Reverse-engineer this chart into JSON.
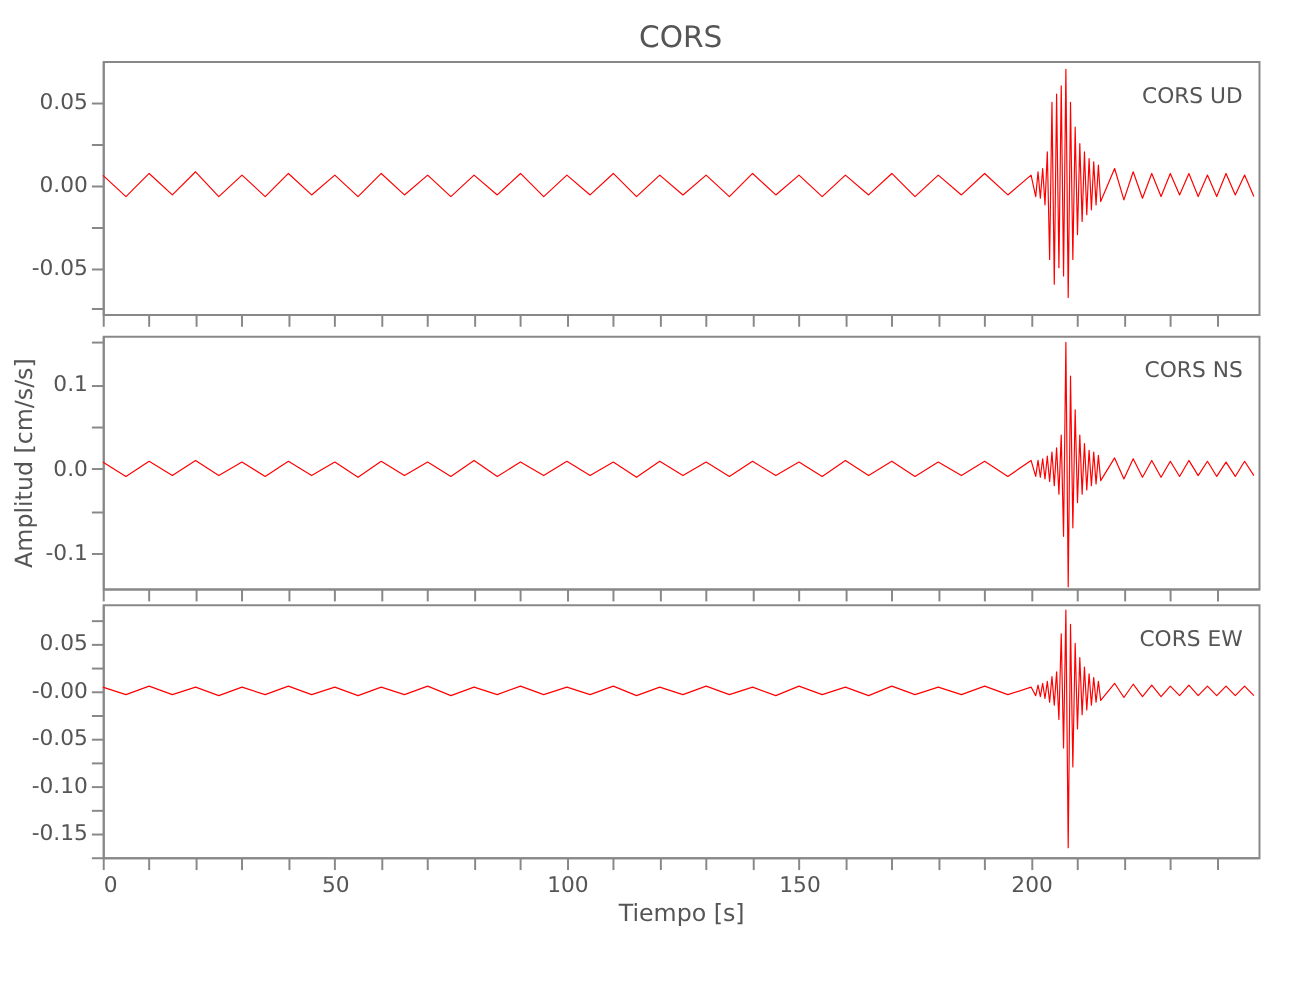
{
  "chart_data": [
    {
      "type": "line",
      "title": "CORS",
      "annotations": [
        "CORS UD"
      ],
      "tick_labels": "y",
      "grid": false,
      "marker": "none",
      "line_style": "solid",
      "x": [
        0,
        5,
        10,
        15,
        20,
        25,
        30,
        35,
        40,
        45,
        50,
        55,
        60,
        65,
        70,
        75,
        80,
        85,
        90,
        95,
        100,
        105,
        110,
        115,
        120,
        125,
        130,
        135,
        140,
        145,
        150,
        155,
        160,
        165,
        170,
        175,
        180,
        185,
        190,
        195,
        200,
        201,
        201.5,
        202,
        202.5,
        203,
        203.5,
        204,
        204.5,
        205,
        205.5,
        206,
        206.5,
        207,
        207.5,
        208,
        208.5,
        209,
        209.5,
        210,
        210.5,
        211,
        211.5,
        212,
        212.5,
        213,
        213.5,
        214,
        214.5,
        215,
        218,
        220,
        222,
        224,
        226,
        228,
        230,
        232,
        234,
        236,
        238,
        240,
        242,
        244,
        246,
        248
      ],
      "series": [
        {
          "color": "#ff0000",
          "values": [
            0.006,
            -0.007,
            0.007,
            -0.006,
            0.008,
            -0.007,
            0.006,
            -0.007,
            0.007,
            -0.006,
            0.006,
            -0.007,
            0.007,
            -0.006,
            0.006,
            -0.007,
            0.006,
            -0.006,
            0.007,
            -0.007,
            0.006,
            -0.006,
            0.007,
            -0.007,
            0.006,
            -0.006,
            0.006,
            -0.007,
            0.007,
            -0.006,
            0.006,
            -0.007,
            0.006,
            -0.006,
            0.007,
            -0.007,
            0.006,
            -0.006,
            0.007,
            -0.006,
            0.006,
            -0.007,
            0.008,
            -0.008,
            0.01,
            -0.012,
            0.02,
            -0.045,
            0.05,
            -0.06,
            0.055,
            -0.05,
            0.06,
            -0.055,
            0.07,
            -0.068,
            0.05,
            -0.045,
            0.035,
            -0.03,
            0.025,
            -0.022,
            0.02,
            -0.018,
            0.016,
            -0.015,
            0.014,
            -0.012,
            0.012,
            -0.01,
            0.01,
            -0.009,
            0.008,
            -0.008,
            0.007,
            -0.007,
            0.007,
            -0.006,
            0.007,
            -0.007,
            0.006,
            -0.007,
            0.007,
            -0.006,
            0.006,
            -0.007
          ]
        }
      ],
      "xlim": [
        0,
        249
      ],
      "xticks": [
        0,
        {
          "value": 10,
          "label": null
        },
        {
          "value": 20,
          "label": null
        },
        {
          "value": 30,
          "label": null
        },
        {
          "value": 40,
          "label": null
        },
        50,
        {
          "value": 60,
          "label": null
        },
        {
          "value": 70,
          "label": null
        },
        {
          "value": 80,
          "label": null
        },
        {
          "value": 90,
          "label": null
        },
        100,
        {
          "value": 110,
          "label": null
        },
        {
          "value": 120,
          "label": null
        },
        {
          "value": 130,
          "label": null
        },
        {
          "value": 140,
          "label": null
        },
        150,
        {
          "value": 160,
          "label": null
        },
        {
          "value": 170,
          "label": null
        },
        {
          "value": 180,
          "label": null
        },
        {
          "value": 190,
          "label": null
        },
        200,
        {
          "value": 210,
          "label": null
        },
        {
          "value": 220,
          "label": null
        },
        {
          "value": 230,
          "label": null
        },
        {
          "value": 240,
          "label": null
        }
      ],
      "ylim": [
        -0.078,
        0.075
      ],
      "yticks": [
        {
          "value": -0.075,
          "label": null
        },
        {
          "value": -0.05,
          "label": "-0.05"
        },
        {
          "value": -0.025,
          "label": null
        },
        {
          "value": 0,
          "label": "0.00"
        },
        {
          "value": 0.025,
          "label": null
        },
        {
          "value": 0.05,
          "label": "0.05"
        }
      ]
    },
    {
      "type": "line",
      "ylabel": "Amplitud [cm/s/s]",
      "annotations": [
        "CORS NS"
      ],
      "tick_labels": "y",
      "grid": false,
      "marker": "none",
      "line_style": "solid",
      "x": [
        0,
        5,
        10,
        15,
        20,
        25,
        30,
        35,
        40,
        45,
        50,
        55,
        60,
        65,
        70,
        75,
        80,
        85,
        90,
        95,
        100,
        105,
        110,
        115,
        120,
        125,
        130,
        135,
        140,
        145,
        150,
        155,
        160,
        165,
        170,
        175,
        180,
        185,
        190,
        195,
        200,
        201,
        201.5,
        202,
        202.5,
        203,
        203.5,
        204,
        204.5,
        205,
        205.5,
        206,
        206.5,
        207,
        207.5,
        208,
        208.5,
        209,
        209.5,
        210,
        210.5,
        211,
        211.5,
        212,
        212.5,
        213,
        213.5,
        214,
        214.5,
        215,
        218,
        220,
        222,
        224,
        226,
        228,
        230,
        232,
        234,
        236,
        238,
        240,
        242,
        244,
        246,
        248
      ],
      "series": [
        {
          "color": "#ff0000",
          "values": [
            0.008,
            -0.009,
            0.009,
            -0.008,
            0.01,
            -0.008,
            0.008,
            -0.009,
            0.009,
            -0.008,
            0.008,
            -0.01,
            0.009,
            -0.008,
            0.008,
            -0.009,
            0.01,
            -0.009,
            0.008,
            -0.008,
            0.009,
            -0.008,
            0.008,
            -0.01,
            0.009,
            -0.008,
            0.008,
            -0.009,
            0.009,
            -0.008,
            0.008,
            -0.009,
            0.01,
            -0.008,
            0.009,
            -0.009,
            0.008,
            -0.008,
            0.009,
            -0.009,
            0.01,
            -0.009,
            0.01,
            -0.01,
            0.012,
            -0.012,
            0.015,
            -0.015,
            0.02,
            -0.02,
            0.025,
            -0.03,
            0.04,
            -0.08,
            0.15,
            -0.14,
            0.11,
            -0.07,
            0.07,
            -0.04,
            0.04,
            -0.03,
            0.03,
            -0.025,
            0.022,
            -0.02,
            0.02,
            -0.018,
            0.016,
            -0.014,
            0.013,
            -0.012,
            0.012,
            -0.01,
            0.01,
            -0.01,
            0.009,
            -0.009,
            0.01,
            -0.008,
            0.009,
            -0.009,
            0.008,
            -0.009,
            0.009,
            -0.008
          ]
        }
      ],
      "xlim": [
        0,
        249
      ],
      "xticks": [
        0,
        {
          "value": 10,
          "label": null
        },
        {
          "value": 20,
          "label": null
        },
        {
          "value": 30,
          "label": null
        },
        {
          "value": 40,
          "label": null
        },
        50,
        {
          "value": 60,
          "label": null
        },
        {
          "value": 70,
          "label": null
        },
        {
          "value": 80,
          "label": null
        },
        {
          "value": 90,
          "label": null
        },
        100,
        {
          "value": 110,
          "label": null
        },
        {
          "value": 120,
          "label": null
        },
        {
          "value": 130,
          "label": null
        },
        {
          "value": 140,
          "label": null
        },
        150,
        {
          "value": 160,
          "label": null
        },
        {
          "value": 170,
          "label": null
        },
        {
          "value": 180,
          "label": null
        },
        {
          "value": 190,
          "label": null
        },
        200,
        {
          "value": 210,
          "label": null
        },
        {
          "value": 220,
          "label": null
        },
        {
          "value": 230,
          "label": null
        },
        {
          "value": 240,
          "label": null
        }
      ],
      "ylim": [
        -0.142,
        0.158
      ],
      "yticks": [
        {
          "value": -0.1,
          "label": "-0.1"
        },
        {
          "value": -0.05,
          "label": null
        },
        {
          "value": 0,
          "label": "0.0"
        },
        {
          "value": 0.05,
          "label": null
        },
        0.1,
        {
          "value": 0.15,
          "label": null
        }
      ]
    },
    {
      "type": "line",
      "xlabel": "Tiempo [s]",
      "annotations": [
        "CORS EW"
      ],
      "grid": false,
      "marker": "none",
      "line_style": "solid",
      "x": [
        0,
        5,
        10,
        15,
        20,
        25,
        30,
        35,
        40,
        45,
        50,
        55,
        60,
        65,
        70,
        75,
        80,
        85,
        90,
        95,
        100,
        105,
        110,
        115,
        120,
        125,
        130,
        135,
        140,
        145,
        150,
        155,
        160,
        165,
        170,
        175,
        180,
        185,
        190,
        195,
        200,
        201,
        201.5,
        202,
        202.5,
        203,
        203.5,
        204,
        204.5,
        205,
        205.5,
        206,
        206.5,
        207,
        207.5,
        208,
        208.5,
        209,
        209.5,
        210,
        210.5,
        211,
        211.5,
        212,
        212.5,
        213,
        213.5,
        214,
        214.5,
        215,
        218,
        220,
        222,
        224,
        226,
        228,
        230,
        232,
        234,
        236,
        238,
        240,
        242,
        244,
        246,
        248
      ],
      "series": [
        {
          "color": "#ff0000",
          "values": [
            0.004,
            -0.004,
            0.005,
            -0.004,
            0.004,
            -0.005,
            0.004,
            -0.004,
            0.005,
            -0.004,
            0.004,
            -0.005,
            0.004,
            -0.004,
            0.005,
            -0.005,
            0.004,
            -0.004,
            0.005,
            -0.004,
            0.004,
            -0.004,
            0.005,
            -0.005,
            0.004,
            -0.004,
            0.005,
            -0.004,
            0.004,
            -0.005,
            0.005,
            -0.004,
            0.004,
            -0.005,
            0.005,
            -0.004,
            0.004,
            -0.004,
            0.005,
            -0.004,
            0.004,
            -0.005,
            0.006,
            -0.006,
            0.008,
            -0.008,
            0.01,
            -0.012,
            0.015,
            -0.015,
            0.02,
            -0.03,
            0.06,
            -0.06,
            0.085,
            -0.165,
            0.07,
            -0.08,
            0.05,
            -0.04,
            0.035,
            -0.025,
            0.025,
            -0.02,
            0.018,
            -0.015,
            0.014,
            -0.012,
            0.01,
            -0.01,
            0.008,
            -0.007,
            0.007,
            -0.006,
            0.006,
            -0.006,
            0.005,
            -0.005,
            0.006,
            -0.005,
            0.005,
            -0.005,
            0.005,
            -0.005,
            0.005,
            -0.005
          ]
        }
      ],
      "xlim": [
        0,
        249
      ],
      "xticks": [
        0,
        {
          "value": 10,
          "label": null
        },
        {
          "value": 20,
          "label": null
        },
        {
          "value": 30,
          "label": null
        },
        {
          "value": 40,
          "label": null
        },
        50,
        {
          "value": 60,
          "label": null
        },
        {
          "value": 70,
          "label": null
        },
        {
          "value": 80,
          "label": null
        },
        {
          "value": 90,
          "label": null
        },
        100,
        {
          "value": 110,
          "label": null
        },
        {
          "value": 120,
          "label": null
        },
        {
          "value": 130,
          "label": null
        },
        {
          "value": 140,
          "label": null
        },
        150,
        {
          "value": 160,
          "label": null
        },
        {
          "value": 170,
          "label": null
        },
        {
          "value": 180,
          "label": null
        },
        {
          "value": 190,
          "label": null
        },
        200,
        {
          "value": 210,
          "label": null
        },
        {
          "value": 220,
          "label": null
        },
        {
          "value": 230,
          "label": null
        },
        {
          "value": 240,
          "label": null
        }
      ],
      "ylim": [
        -0.175,
        0.091
      ],
      "yticks": [
        {
          "value": -0.175,
          "label": null
        },
        {
          "value": -0.15,
          "label": "-0.15"
        },
        {
          "value": -0.125,
          "label": null
        },
        {
          "value": -0.1,
          "label": "-0.10"
        },
        {
          "value": -0.075,
          "label": null
        },
        {
          "value": -0.05,
          "label": "-0.05"
        },
        {
          "value": -0.025,
          "label": null
        },
        {
          "value": 0,
          "label": "-0.00"
        },
        {
          "value": 0.025,
          "label": null
        },
        {
          "value": 0.05,
          "label": "0.05"
        },
        {
          "value": 0.075,
          "label": null
        }
      ]
    }
  ]
}
